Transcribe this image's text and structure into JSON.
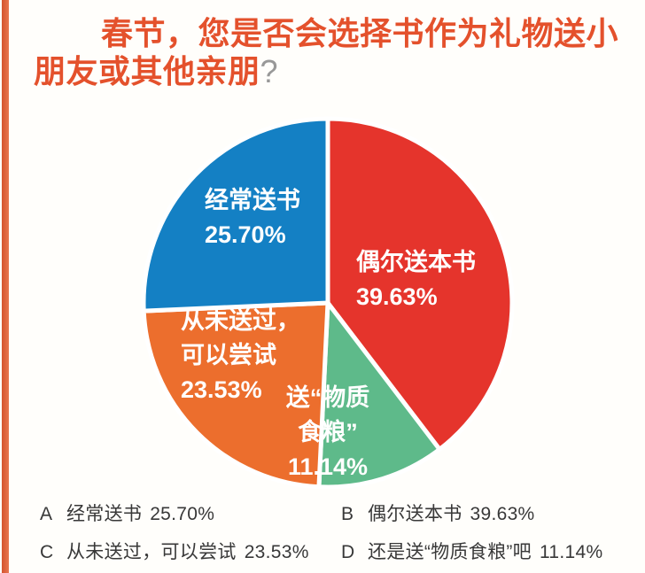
{
  "page": {
    "background": "#fffefb",
    "accent_bar_color": "#e0603a"
  },
  "title": {
    "line1": "春节，您是否会选择书作为礼物送小",
    "line2": "朋友或其他亲朋",
    "question_mark": "?",
    "color": "#e4512c",
    "question_mark_color": "#989898"
  },
  "chart_data": {
    "type": "pie",
    "title": "春节，您是否会选择书作为礼物送小朋友或其他亲朋?",
    "direction": "clockwise",
    "start_angle_deg": 0,
    "legend_position": "bottom",
    "slices": [
      {
        "name": "occasionally-give-book",
        "label": "偶尔送本书",
        "value": 39.63,
        "display": "39.63%",
        "color": "#e5342c"
      },
      {
        "name": "material-food-instead",
        "label": "送“物质食粮”",
        "value": 11.14,
        "display": "11.14%",
        "color": "#5eba8a"
      },
      {
        "name": "never-sent-could-try",
        "label": "从未送过，可以尝试",
        "value": 23.53,
        "display": "23.53%",
        "color": "#ec6e2d"
      },
      {
        "name": "often-give-books",
        "label": "经常送书",
        "value": 25.7,
        "display": "25.70%",
        "color": "#1480c4"
      }
    ]
  },
  "pie_labels": {
    "blue": {
      "line1": "经常送书",
      "line2": "25.70%"
    },
    "red": {
      "line1": "偶尔送本书",
      "line2": "39.63%"
    },
    "orange": {
      "line1": "从未送过，",
      "line2": "可以尝试",
      "line3": "23.53%"
    },
    "green": {
      "line1": "送“物质",
      "line2": "食粮”",
      "line3": "11.14%"
    }
  },
  "legend": {
    "items": [
      {
        "key": "A",
        "label": "经常送书",
        "pct": "25.70%"
      },
      {
        "key": "B",
        "label": "偶尔送本书",
        "pct": "39.63%"
      },
      {
        "key": "C",
        "label": "从未送过，可以尝试",
        "pct": "23.53%"
      },
      {
        "key": "D",
        "label": "还是送“物质食粮”吧",
        "pct": "11.14%"
      }
    ]
  }
}
